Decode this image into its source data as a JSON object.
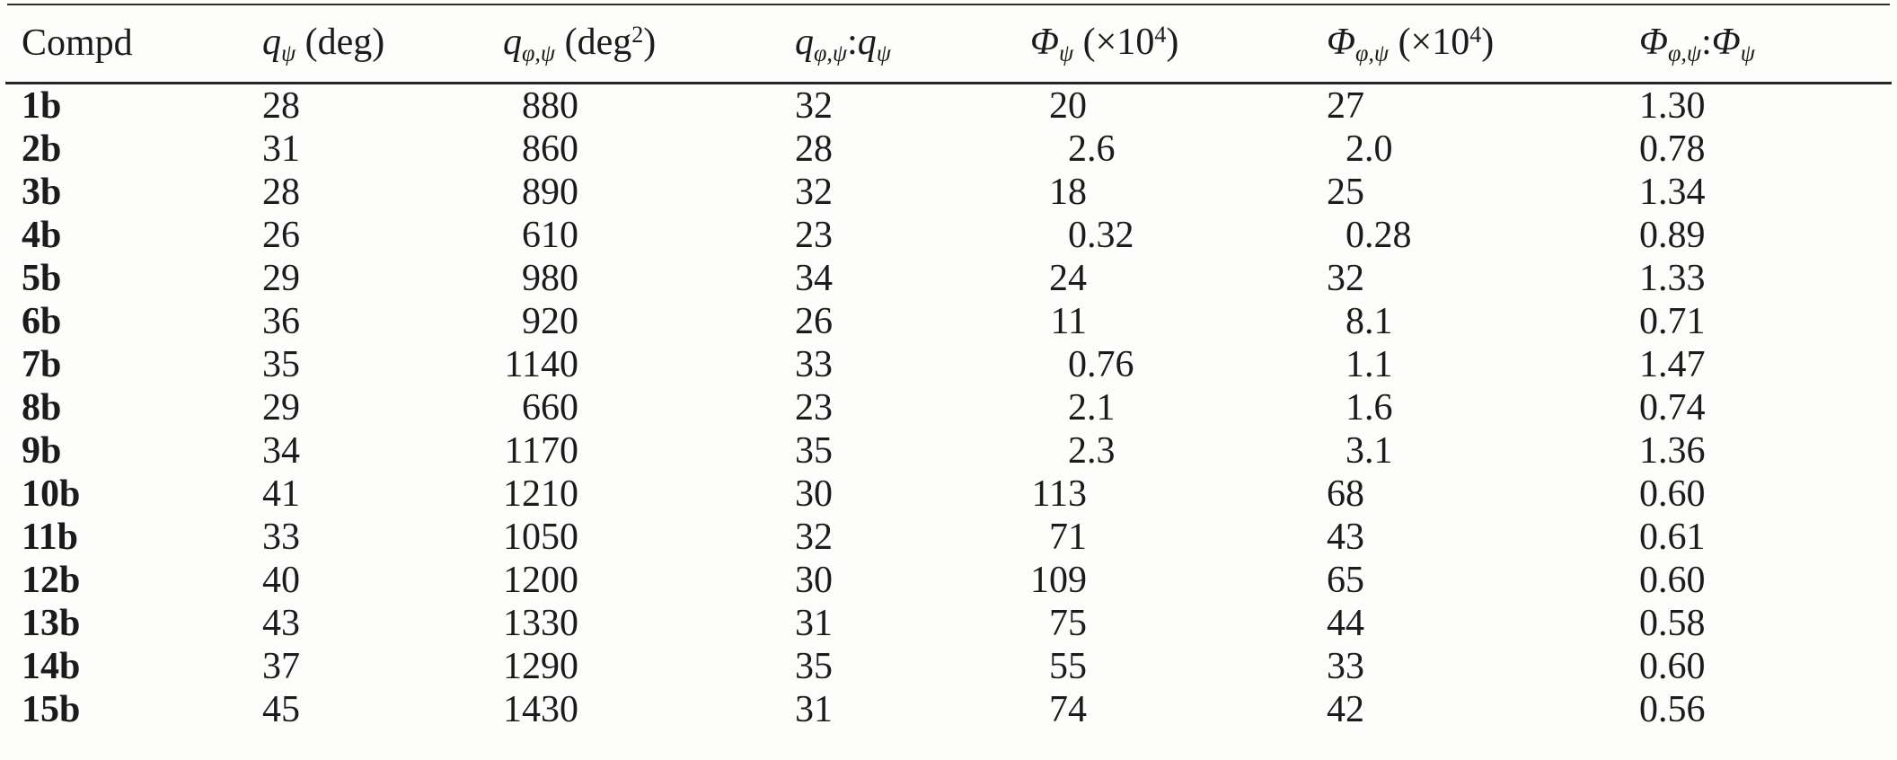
{
  "page": {
    "background": "#fdfdfb",
    "text_color": "#1b1b1b",
    "rule_color": "#2b2b2b"
  },
  "table": {
    "header": {
      "compd": {
        "label": "Compd"
      },
      "q_psi": {
        "sym": "q",
        "sub": "ψ",
        "unit": " (deg)"
      },
      "q_phi_psi": {
        "sym": "q",
        "sub": "φ,ψ",
        "unit_pre": " (deg",
        "unit_sup": "2",
        "unit_post": ")"
      },
      "ratio_q": {
        "sym1": "q",
        "sub1": "φ,ψ",
        "sep": ":",
        "sym2": "q",
        "sub2": "ψ"
      },
      "phi_psi": {
        "sym": "Φ",
        "sub": "ψ",
        "unit_pre": " (×10",
        "unit_sup": "4",
        "unit_post": ")"
      },
      "phi_phi_psi": {
        "sym": "Φ",
        "sub": "φ,ψ",
        "unit_pre": " (×10",
        "unit_sup": "4",
        "unit_post": ")"
      },
      "ratio_phi": {
        "sym1": "Φ",
        "sub1": "φ,ψ",
        "sep": ":",
        "sym2": "Φ",
        "sub2": "ψ"
      }
    }
  },
  "chart_data": {
    "type": "table",
    "columns": [
      "Compd",
      "q_ψ (deg)",
      "q_φ,ψ (deg²)",
      "q_φ,ψ:q_ψ",
      "Φ_ψ (×10⁴)",
      "Φ_φ,ψ (×10⁴)",
      "Φ_φ,ψ:Φ_ψ"
    ],
    "rows": [
      [
        "1b",
        "28",
        "880",
        "32",
        "20",
        "27",
        "1.30"
      ],
      [
        "2b",
        "31",
        "860",
        "28",
        "2.6",
        "2.0",
        "0.78"
      ],
      [
        "3b",
        "28",
        "890",
        "32",
        "18",
        "25",
        "1.34"
      ],
      [
        "4b",
        "26",
        "610",
        "23",
        "0.32",
        "0.28",
        "0.89"
      ],
      [
        "5b",
        "29",
        "980",
        "34",
        "24",
        "32",
        "1.33"
      ],
      [
        "6b",
        "36",
        "920",
        "26",
        "11",
        "8.1",
        "0.71"
      ],
      [
        "7b",
        "35",
        "1140",
        "33",
        "0.76",
        "1.1",
        "1.47"
      ],
      [
        "8b",
        "29",
        "660",
        "23",
        "2.1",
        "1.6",
        "0.74"
      ],
      [
        "9b",
        "34",
        "1170",
        "35",
        "2.3",
        "3.1",
        "1.36"
      ],
      [
        "10b",
        "41",
        "1210",
        "30",
        "113",
        "68",
        "0.60"
      ],
      [
        "11b",
        "33",
        "1050",
        "32",
        "71",
        "43",
        "0.61"
      ],
      [
        "12b",
        "40",
        "1200",
        "30",
        "109",
        "65",
        "0.60"
      ],
      [
        "13b",
        "43",
        "1330",
        "31",
        "75",
        "44",
        "0.58"
      ],
      [
        "14b",
        "37",
        "1290",
        "35",
        "55",
        "33",
        "0.60"
      ],
      [
        "15b",
        "45",
        "1430",
        "31",
        "74",
        "42",
        "0.56"
      ]
    ]
  }
}
